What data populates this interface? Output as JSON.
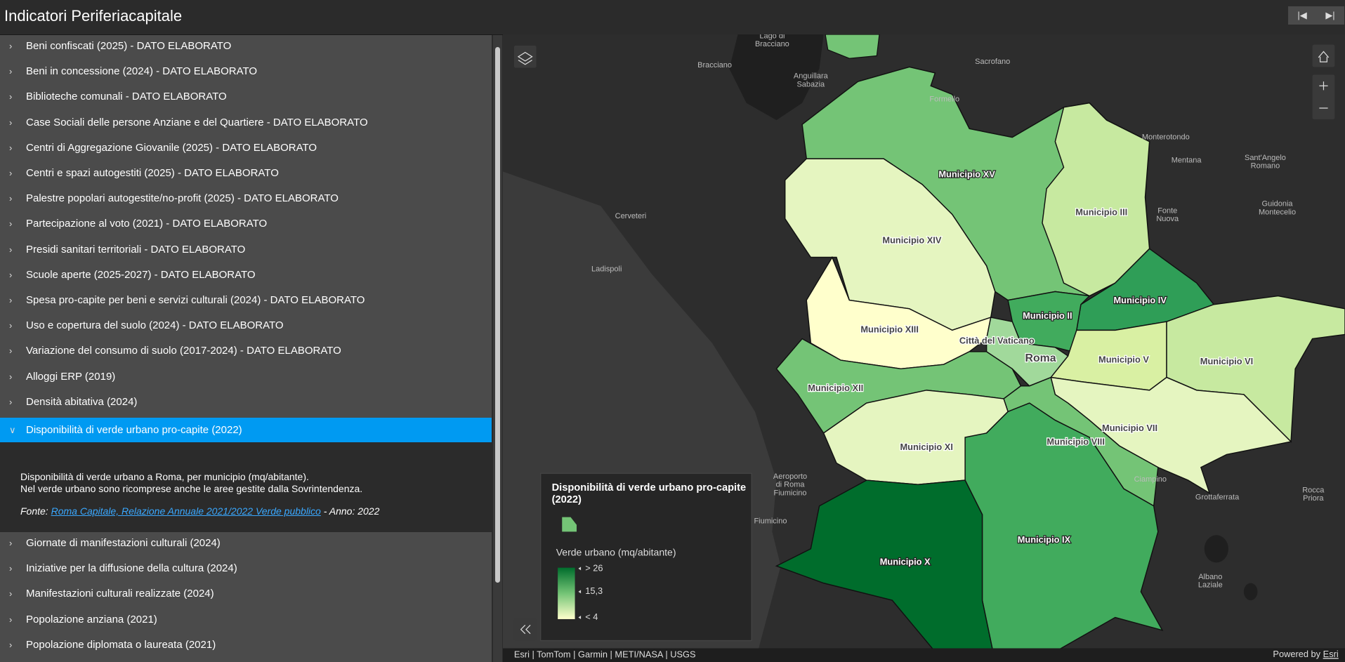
{
  "header": {
    "title": "Indicatori Periferiacapitale"
  },
  "layers": {
    "before": [
      "Beni confiscati (2025) - DATO ELABORATO",
      "Beni in concessione (2024) - DATO ELABORATO",
      "Biblioteche comunali - DATO ELABORATO",
      "Case Sociali delle persone Anziane e del Quartiere - DATO ELABORATO",
      "Centri di Aggregazione Giovanile (2025) - DATO ELABORATO",
      "Centri e spazi autogestiti (2025) - DATO ELABORATO",
      "Palestre popolari autogestite/no-profit (2025) - DATO ELABORATO",
      "Partecipazione al voto (2021) - DATO ELABORATO",
      "Presidi sanitari territoriali - DATO ELABORATO",
      "Scuole aperte (2025-2027) - DATO ELABORATO",
      "Spesa pro-capite per beni e servizi culturali (2024) - DATO ELABORATO",
      "Uso e copertura del suolo (2024) - DATO ELABORATO",
      "Variazione del consumo di suolo (2017-2024) - DATO ELABORATO",
      "Alloggi ERP (2019)",
      "Densità abitativa (2024)"
    ],
    "expanded": {
      "title": "Disponibilità di verde urbano pro-capite (2022)",
      "description": [
        "Disponibilità di verde urbano a Roma, per municipio (mq/abitante).",
        "Nel verde urbano sono ricomprese anche le aree gestite dalla Sovrintendenza."
      ],
      "source_label": "Fonte:",
      "source_link": "Roma Capitale, Relazione Annuale 2021/2022 Verde pubblico",
      "source_year": "- Anno: 2022"
    },
    "after": [
      "Giornate di manifestazioni culturali (2024)",
      "Iniziative per la diffusione della cultura (2024)",
      "Manifestazioni culturali realizzate (2024)",
      "Popolazione anziana (2021)",
      "Popolazione diplomata o laureata (2021)"
    ]
  },
  "map": {
    "municipi": [
      "Municipio XV",
      "Municipio XIV",
      "Municipio III",
      "Municipio IV",
      "Municipio XIII",
      "Municipio II",
      "Municipio V",
      "Municipio VI",
      "Municipio XII",
      "Municipio VII",
      "Municipio VIII",
      "Municipio XI",
      "Municipio IX",
      "Municipio X"
    ],
    "center": [
      "Città del Vaticano",
      "Roma"
    ],
    "places": [
      [
        "Lago di",
        "Bracciano"
      ],
      [
        "Bracciano"
      ],
      [
        "Anguillara",
        "Sabazia"
      ],
      [
        "Sacrofano"
      ],
      [
        "Formello"
      ],
      [
        "Monterotondo"
      ],
      [
        "Mentana"
      ],
      [
        "Sant'Angelo",
        "Romano"
      ],
      [
        "Guidonia",
        "Montecelio"
      ],
      [
        "Fonte",
        "Nuova"
      ],
      [
        "Cerveteri"
      ],
      [
        "Ladispoli"
      ],
      [
        "Aeroporto",
        "di Roma",
        "Fiumicino"
      ],
      [
        "Fiumicino"
      ],
      [
        "Ciampino"
      ],
      [
        "Grottaferrata"
      ],
      [
        "Rocca",
        "Priora"
      ],
      [
        "Albano",
        "Laziale"
      ]
    ]
  },
  "legend": {
    "title": [
      "Disponibilità di verde urbano pro-capite",
      "(2022)"
    ],
    "field": "Verde urbano (mq/abitante)",
    "ramp": [
      "> 26",
      "15,3",
      "< 4"
    ]
  },
  "attribution": "Esri | TomTom | Garmin | METI/NASA | USGS",
  "powered": {
    "label": "Powered by",
    "link": "Esri"
  }
}
